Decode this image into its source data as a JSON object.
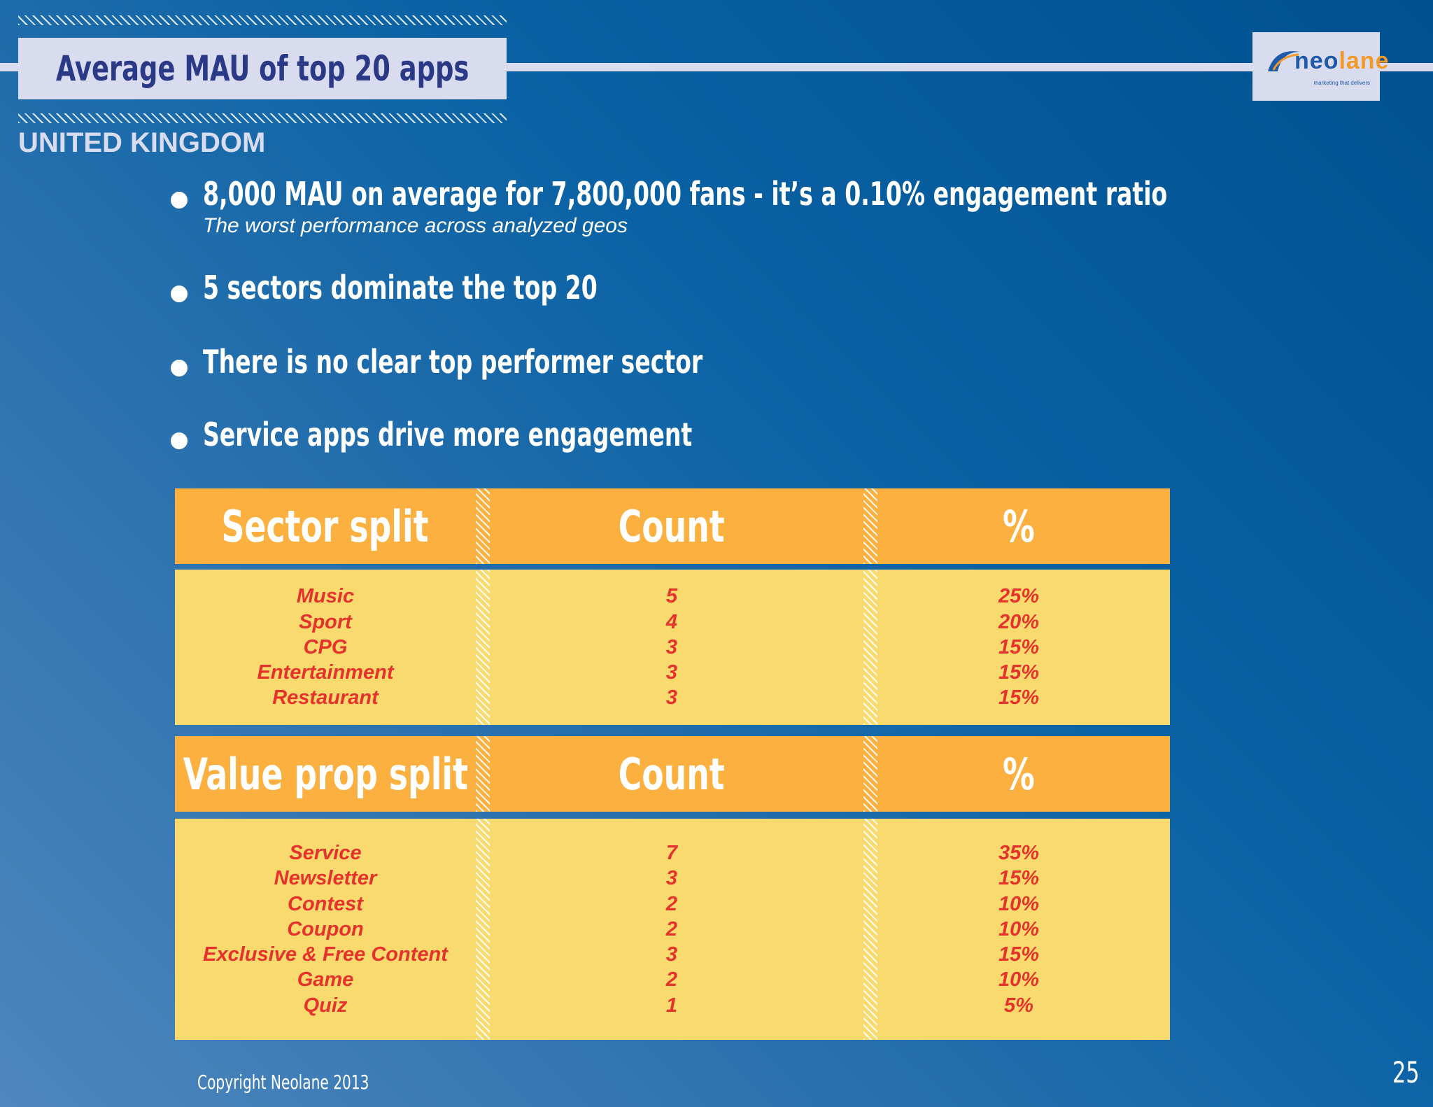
{
  "header": {
    "title": "Average MAU of top 20 apps",
    "logo": {
      "brand_part1": "neo",
      "brand_part2": "lane",
      "tagline": "marketing that delivers"
    }
  },
  "country": "UNITED KINGDOM",
  "bullets": [
    {
      "text": "8,000 MAU on average for 7,800,000 fans - it’s a 0.10% engagement ratio",
      "subtext": "The worst performance across analyzed geos"
    },
    {
      "text": "5 sectors dominate the top 20"
    },
    {
      "text": "There is no clear top performer sector"
    },
    {
      "text": "Service apps drive more engagement"
    }
  ],
  "sector_table": {
    "headers": [
      "Sector split",
      "Count",
      "%"
    ],
    "rows": [
      {
        "name": "Music",
        "count": "5",
        "pct": "25%"
      },
      {
        "name": "Sport",
        "count": "4",
        "pct": "20%"
      },
      {
        "name": "CPG",
        "count": "3",
        "pct": "15%"
      },
      {
        "name": "Entertainment",
        "count": "3",
        "pct": "15%"
      },
      {
        "name": "Restaurant",
        "count": "3",
        "pct": "15%"
      }
    ]
  },
  "value_prop_table": {
    "headers": [
      "Value prop split",
      "Count",
      "%"
    ],
    "rows": [
      {
        "name": "Service",
        "count": "7",
        "pct": "35%"
      },
      {
        "name": "Newsletter",
        "count": "3",
        "pct": "15%"
      },
      {
        "name": "Contest",
        "count": "2",
        "pct": "10%"
      },
      {
        "name": "Coupon",
        "count": "2",
        "pct": "10%"
      },
      {
        "name": "Exclusive & Free Content",
        "count": "3",
        "pct": "15%"
      },
      {
        "name": "Game",
        "count": "2",
        "pct": "10%"
      },
      {
        "name": "Quiz",
        "count": "1",
        "pct": "5%"
      }
    ]
  },
  "footer": {
    "copyright": "Copyright Neolane 2013",
    "page_number": "25"
  },
  "colors": {
    "header_orange": "#fbb040",
    "body_yellow": "#f8da6e",
    "value_red": "#e5322d",
    "title_navy": "#2b3a86"
  }
}
